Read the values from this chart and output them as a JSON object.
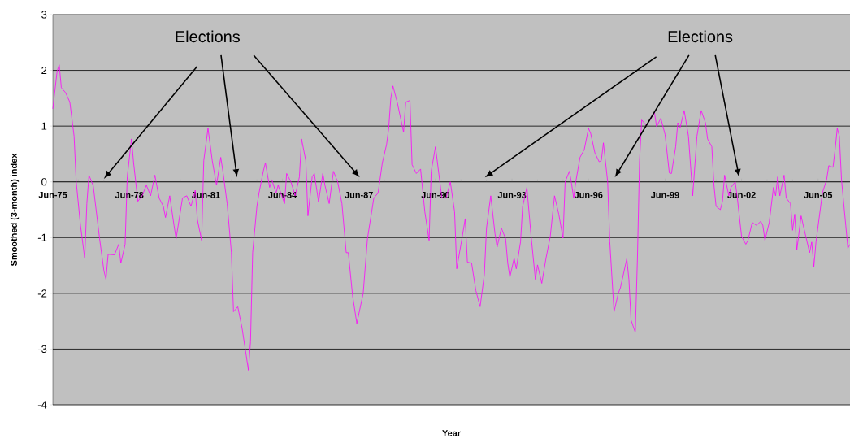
{
  "chart_data": {
    "type": "line",
    "xlabel": "Year",
    "ylabel": "Smoothed (3-month) index",
    "annotations": [
      "Elections",
      "Elections"
    ],
    "color": "#ff00ff",
    "marker": "none",
    "line_style": "solid",
    "grid": "y",
    "xlim": [
      "1975-06",
      "2006-09"
    ],
    "ylim": [
      -4,
      3
    ],
    "yticks": [
      -4,
      -3,
      -2,
      -1,
      0,
      1,
      2,
      3
    ],
    "xticks": [
      {
        "value": "1975-06",
        "label": "Jun-75"
      },
      {
        "value": "1978-06",
        "label": "Jun-78"
      },
      {
        "value": "1981-06",
        "label": "Jun-81"
      },
      {
        "value": "1984-06",
        "label": "Jun-84"
      },
      {
        "value": "1987-06",
        "label": "Jun-87"
      },
      {
        "value": "1990-06",
        "label": "Jun-90"
      },
      {
        "value": "1993-06",
        "label": "Jun-93"
      },
      {
        "value": "1996-06",
        "label": "Jun-96"
      },
      {
        "value": "1999-06",
        "label": "Jun-99"
      },
      {
        "value": "2002-06",
        "label": "Jun-02"
      },
      {
        "value": "2005-06",
        "label": "Jun-05"
      }
    ],
    "x": [
      "1975-06",
      "1975-08",
      "1975-09",
      "1975-10",
      "1975-12",
      "1976-02",
      "1976-04",
      "1976-05",
      "1976-07",
      "1976-09",
      "1976-10",
      "1976-11",
      "1977-01",
      "1977-04",
      "1977-06",
      "1977-07",
      "1977-08",
      "1977-11",
      "1978-01",
      "1978-02",
      "1978-04",
      "1978-05",
      "1978-07",
      "1978-08",
      "1978-10",
      "1978-12",
      "1979-02",
      "1979-04",
      "1979-06",
      "1979-08",
      "1979-10",
      "1979-11",
      "1980-01",
      "1980-03",
      "1980-04",
      "1980-07",
      "1980-09",
      "1980-11",
      "1981-01",
      "1981-02",
      "1981-04",
      "1981-05",
      "1981-07",
      "1981-09",
      "1981-11",
      "1982-01",
      "1982-02",
      "1982-04",
      "1982-06",
      "1982-07",
      "1982-09",
      "1982-11",
      "1983-01",
      "1983-02",
      "1983-03",
      "1983-04",
      "1983-06",
      "1983-07",
      "1983-09",
      "1983-10",
      "1983-12",
      "1984-01",
      "1984-03",
      "1984-04",
      "1984-07",
      "1984-08",
      "1984-10",
      "1984-12",
      "1985-02",
      "1985-03",
      "1985-05",
      "1985-06",
      "1985-08",
      "1985-09",
      "1985-11",
      "1986-01",
      "1986-02",
      "1986-04",
      "1986-06",
      "1986-08",
      "1986-10",
      "1986-12",
      "1987-01",
      "1987-03",
      "1987-05",
      "1987-08",
      "1987-10",
      "1988-01",
      "1988-03",
      "1988-05",
      "1988-07",
      "1988-08",
      "1988-09",
      "1988-10",
      "1988-12",
      "1989-03",
      "1989-04",
      "1989-06",
      "1989-07",
      "1989-09",
      "1989-11",
      "1990-01",
      "1990-03",
      "1990-04",
      "1990-06",
      "1990-09",
      "1990-11",
      "1991-01",
      "1991-03",
      "1991-04",
      "1991-06",
      "1991-08",
      "1991-09",
      "1991-11",
      "1992-01",
      "1992-03",
      "1992-05",
      "1992-06",
      "1992-08",
      "1992-10",
      "1992-11",
      "1993-01",
      "1993-03",
      "1993-04",
      "1993-05",
      "1993-07",
      "1993-08",
      "1993-10",
      "1993-11",
      "1994-01",
      "1994-03",
      "1994-05",
      "1994-06",
      "1994-08",
      "1994-10",
      "1994-12",
      "1995-02",
      "1995-04",
      "1995-06",
      "1995-07",
      "1995-09",
      "1995-10",
      "1995-11",
      "1995-12",
      "1996-02",
      "1996-04",
      "1996-06",
      "1996-07",
      "1996-09",
      "1996-11",
      "1996-12",
      "1997-01",
      "1997-03",
      "1997-04",
      "1997-06",
      "1997-08",
      "1997-09",
      "1997-12",
      "1998-01",
      "1998-02",
      "1998-04",
      "1998-05",
      "1998-06",
      "1998-07",
      "1998-09",
      "1998-11",
      "1999-01",
      "1999-02",
      "1999-04",
      "1999-06",
      "1999-08",
      "1999-09",
      "1999-11",
      "1999-12",
      "2000-01",
      "2000-03",
      "2000-05",
      "2000-07",
      "2000-09",
      "2000-11",
      "2001-01",
      "2001-02",
      "2001-04",
      "2001-05",
      "2001-06",
      "2001-08",
      "2001-09",
      "2001-10",
      "2001-12",
      "2002-01",
      "2002-03",
      "2002-04",
      "2002-06",
      "2002-08",
      "2002-09",
      "2002-11",
      "2003-01",
      "2003-03",
      "2003-04",
      "2003-05",
      "2003-07",
      "2003-09",
      "2003-10",
      "2003-11",
      "2003-12",
      "2004-02",
      "2004-03",
      "2004-05",
      "2004-06",
      "2004-07",
      "2004-08",
      "2004-10",
      "2004-11",
      "2005-02",
      "2005-03",
      "2005-04",
      "2005-05",
      "2005-07",
      "2005-08",
      "2005-10",
      "2005-11",
      "2006-01",
      "2006-02",
      "2006-03",
      "2006-04",
      "2006-05",
      "2006-07",
      "2006-08",
      "2006-09"
    ],
    "values": [
      1.31,
      1.98,
      2.1,
      1.69,
      1.6,
      1.43,
      0.82,
      0,
      -0.78,
      -1.37,
      -0.39,
      0.12,
      -0.07,
      -1.02,
      -1.59,
      -1.75,
      -1.3,
      -1.31,
      -1.12,
      -1.46,
      -1.12,
      0.09,
      0.77,
      0.34,
      -0.35,
      -0.25,
      -0.06,
      -0.25,
      0.12,
      -0.29,
      -0.44,
      -0.64,
      -0.25,
      -0.78,
      -1.02,
      -0.29,
      -0.25,
      -0.44,
      -0.15,
      -0.68,
      -1.05,
      0.38,
      0.96,
      0.38,
      -0.06,
      0.44,
      0.19,
      -0.39,
      -1.27,
      -2.33,
      -2.24,
      -2.62,
      -3.12,
      -3.38,
      -2.87,
      -1.27,
      -0.44,
      -0.2,
      0.19,
      0.34,
      -0.1,
      0.04,
      -0.2,
      -0.06,
      -0.39,
      0.15,
      0,
      -0.25,
      0.09,
      0.77,
      0.38,
      -0.61,
      0.09,
      0.15,
      -0.36,
      0.15,
      -0.06,
      -0.39,
      0.19,
      0,
      -0.39,
      -1.27,
      -1.27,
      -2.04,
      -2.54,
      -2.0,
      -1.02,
      -0.29,
      -0.2,
      0.34,
      0.67,
      0.96,
      1.5,
      1.72,
      1.43,
      0.89,
      1.43,
      1.46,
      0.31,
      0.15,
      0.23,
      -0.54,
      -1.05,
      0.19,
      0.63,
      -0.29,
      -0.29,
      0,
      -0.54,
      -1.56,
      -1.12,
      -0.66,
      -1.44,
      -1.46,
      -1.95,
      -2.24,
      -1.66,
      -0.83,
      -0.25,
      -0.93,
      -1.17,
      -0.83,
      -1.02,
      -1.46,
      -1.71,
      -1.37,
      -1.56,
      -1.08,
      -0.44,
      -0.1,
      -0.98,
      -1.75,
      -1.49,
      -1.82,
      -1.37,
      -0.98,
      -0.25,
      -0.58,
      -1.01,
      0,
      0.19,
      -0.03,
      -0.29,
      0,
      0.44,
      0.58,
      0.96,
      0.87,
      0.52,
      0.36,
      0.38,
      0.7,
      0,
      -1.08,
      -2.33,
      -2.0,
      -1.9,
      -1.38,
      -1.75,
      -2.48,
      -2.7,
      -1.37,
      0.38,
      1.11,
      1.02,
      1.11,
      1.25,
      0.99,
      1.14,
      0.85,
      0.16,
      0.15,
      0.63,
      1.06,
      0.96,
      1.28,
      0.82,
      -0.25,
      0.82,
      1.28,
      1.06,
      0.77,
      0.63,
      -0.06,
      -0.44,
      -0.5,
      -0.35,
      0.12,
      -0.25,
      -0.1,
      0,
      -0.29,
      -0.98,
      -1.12,
      -1.05,
      -0.73,
      -0.78,
      -0.71,
      -0.78,
      -1.05,
      -0.73,
      -0.1,
      -0.25,
      0.09,
      -0.25,
      0.12,
      -0.29,
      -0.39,
      -0.87,
      -0.58,
      -1.22,
      -0.61,
      -0.78,
      -1.27,
      -1.08,
      -1.52,
      -1.08,
      -0.5,
      -0.2,
      0.04,
      0.29,
      0.26,
      0.58,
      0.96,
      0.82,
      0.04,
      -0.78,
      -1.19,
      -1.12
    ]
  }
}
